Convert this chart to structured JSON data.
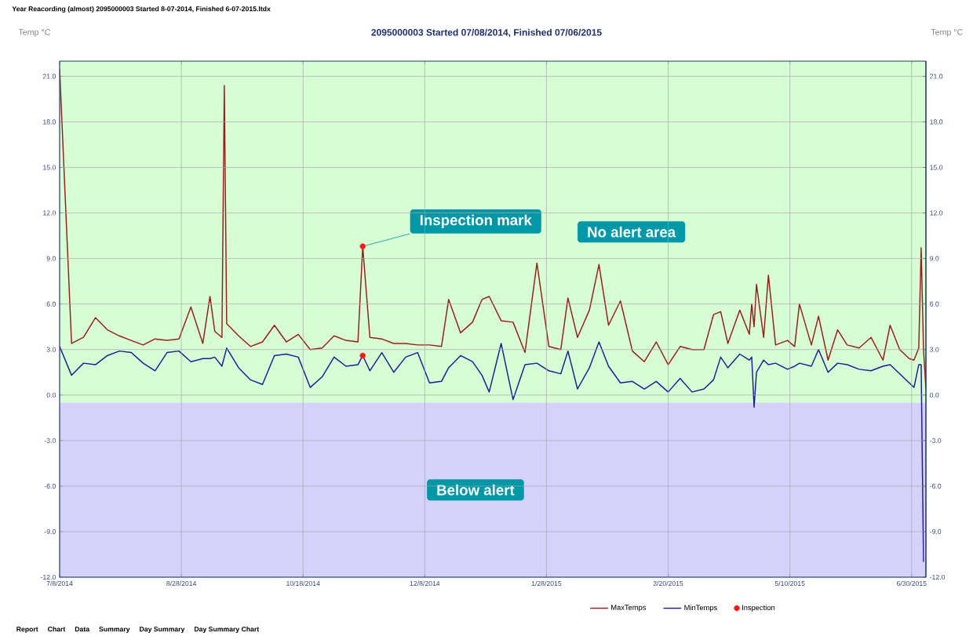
{
  "chart_data": {
    "type": "line",
    "title": "2095000003 Started 07/08/2014, Finished 07/06/2015",
    "ylabel": "Temp °C",
    "y2label": "Temp °C",
    "x": [
      "2014-07-08",
      "2014-07-13",
      "2014-07-18",
      "2014-07-23",
      "2014-07-28",
      "2014-08-02",
      "2014-08-07",
      "2014-08-12",
      "2014-08-17",
      "2014-08-22",
      "2014-08-27",
      "2014-09-01",
      "2014-09-06",
      "2014-09-09",
      "2014-09-11",
      "2014-09-14",
      "2014-09-15",
      "2014-09-16",
      "2014-09-21",
      "2014-09-26",
      "2014-10-01",
      "2014-10-06",
      "2014-10-11",
      "2014-10-16",
      "2014-10-21",
      "2014-10-26",
      "2014-10-31",
      "2014-11-05",
      "2014-11-10",
      "2014-11-12",
      "2014-11-15",
      "2014-11-20",
      "2014-11-25",
      "2014-11-30",
      "2014-12-05",
      "2014-12-10",
      "2014-12-15",
      "2014-12-18",
      "2014-12-23",
      "2014-12-28",
      "2015-01-01",
      "2015-01-04",
      "2015-01-09",
      "2015-01-14",
      "2015-01-19",
      "2015-01-24",
      "2015-01-29",
      "2015-02-03",
      "2015-02-06",
      "2015-02-10",
      "2015-02-15",
      "2015-02-19",
      "2015-02-23",
      "2015-02-28",
      "2015-03-05",
      "2015-03-10",
      "2015-03-15",
      "2015-03-20",
      "2015-03-25",
      "2015-03-30",
      "2015-04-04",
      "2015-04-08",
      "2015-04-11",
      "2015-04-14",
      "2015-04-19",
      "2015-04-23",
      "2015-04-24",
      "2015-04-25",
      "2015-04-26",
      "2015-04-29",
      "2015-05-01",
      "2015-05-04",
      "2015-05-09",
      "2015-05-12",
      "2015-05-14",
      "2015-05-19",
      "2015-05-22",
      "2015-05-26",
      "2015-05-30",
      "2015-06-03",
      "2015-06-08",
      "2015-06-13",
      "2015-06-18",
      "2015-06-21",
      "2015-06-25",
      "2015-06-29",
      "2015-07-01",
      "2015-07-03",
      "2015-07-04",
      "2015-07-05",
      "2015-07-06"
    ],
    "series": [
      {
        "name": "MaxTemps",
        "color": "#9b1c1c",
        "values": [
          21.5,
          3.4,
          3.8,
          5.1,
          4.3,
          3.9,
          3.6,
          3.3,
          3.7,
          3.6,
          3.7,
          5.8,
          3.4,
          6.5,
          4.2,
          3.8,
          20.4,
          4.7,
          3.9,
          3.2,
          3.5,
          4.6,
          3.5,
          4.0,
          3.0,
          3.1,
          3.9,
          3.6,
          3.5,
          9.8,
          3.8,
          3.7,
          3.4,
          3.4,
          3.3,
          3.3,
          3.2,
          6.3,
          4.1,
          4.8,
          6.3,
          6.5,
          4.9,
          4.8,
          2.8,
          8.7,
          3.2,
          3.0,
          6.4,
          3.8,
          5.6,
          8.6,
          4.6,
          6.2,
          2.9,
          2.2,
          3.5,
          2.0,
          3.2,
          3.0,
          3.0,
          5.3,
          5.5,
          3.4,
          5.6,
          4.0,
          6.0,
          4.5,
          7.3,
          3.8,
          7.9,
          3.3,
          3.6,
          3.2,
          6.0,
          3.3,
          5.2,
          2.3,
          4.3,
          3.3,
          3.1,
          3.8,
          2.3,
          4.6,
          3.0,
          2.4,
          2.3,
          3.1,
          9.7,
          3.0,
          0.4
        ]
      },
      {
        "name": "MinTemps",
        "color": "#1c1c9c",
        "values": [
          3.2,
          1.3,
          2.1,
          2.0,
          2.6,
          2.9,
          2.8,
          2.1,
          1.6,
          2.8,
          2.9,
          2.2,
          2.4,
          2.4,
          2.5,
          1.9,
          2.5,
          3.1,
          1.8,
          1.0,
          0.7,
          2.6,
          2.7,
          2.5,
          0.5,
          1.2,
          2.5,
          1.9,
          2.0,
          2.6,
          1.6,
          2.8,
          1.5,
          2.5,
          2.8,
          0.8,
          0.9,
          1.8,
          2.6,
          2.2,
          1.3,
          0.2,
          3.4,
          -0.3,
          2.0,
          2.1,
          1.6,
          1.4,
          2.9,
          0.4,
          1.8,
          3.5,
          1.9,
          0.8,
          0.9,
          0.4,
          0.9,
          0.2,
          1.1,
          0.2,
          0.4,
          1.0,
          2.5,
          1.8,
          2.7,
          2.3,
          2.5,
          -0.8,
          1.5,
          2.3,
          2.0,
          2.1,
          1.7,
          1.9,
          2.1,
          1.9,
          3.0,
          1.5,
          2.1,
          2.0,
          1.7,
          1.6,
          1.9,
          2.0,
          1.4,
          0.8,
          0.5,
          2.0,
          2.0,
          -11.0,
          null
        ]
      },
      {
        "name": "Inspection",
        "type": "scatter",
        "marker": "circle",
        "color": "#ff1a1a",
        "x": [
          "2014-11-12",
          "2014-11-12"
        ],
        "values": [
          9.8,
          2.6
        ]
      }
    ],
    "xlim": [
      "2014-07-08",
      "2015-07-06"
    ],
    "xticks": [
      {
        "value": "2014-07-08",
        "label": "7/8/2014"
      },
      {
        "value": "2014-08-28",
        "label": "8/28/2014"
      },
      {
        "value": "2014-10-18",
        "label": "10/18/2014"
      },
      {
        "value": "2014-12-08",
        "label": "12/8/2014"
      },
      {
        "value": "2015-01-28",
        "label": "1/28/2015"
      },
      {
        "value": "2015-03-20",
        "label": "3/20/2015"
      },
      {
        "value": "2015-05-10",
        "label": "5/10/2015"
      },
      {
        "value": "2015-06-30",
        "label": "6/30/2015"
      }
    ],
    "ylim": [
      -12,
      22
    ],
    "yticks": [
      {
        "value": -12,
        "label": "-12.0"
      },
      {
        "value": -9,
        "label": "-9.0"
      },
      {
        "value": -6,
        "label": "-6.0"
      },
      {
        "value": -3,
        "label": "-3.0"
      },
      {
        "value": 0,
        "label": "0.0"
      },
      {
        "value": 3,
        "label": "3.0"
      },
      {
        "value": 6,
        "label": "6.0"
      },
      {
        "value": 9,
        "label": "9.0"
      },
      {
        "value": 12,
        "label": "12.0"
      },
      {
        "value": 15,
        "label": "15.0"
      },
      {
        "value": 18,
        "label": "18.0"
      },
      {
        "value": 21,
        "label": "21.0"
      }
    ],
    "y2lim": [
      -12,
      22
    ],
    "y2ticks": [
      {
        "value": -12,
        "label": "-12.0"
      },
      {
        "value": -9,
        "label": "-9.0"
      },
      {
        "value": -6,
        "label": "-6.0"
      },
      {
        "value": -3,
        "label": "-3.0"
      },
      {
        "value": 0,
        "label": "0.0"
      },
      {
        "value": 3,
        "label": "3.0"
      },
      {
        "value": 6,
        "label": "6.0"
      },
      {
        "value": 9,
        "label": "9.0"
      },
      {
        "value": 12,
        "label": "12.0"
      },
      {
        "value": 15,
        "label": "15.0"
      },
      {
        "value": 18,
        "label": "18.0"
      },
      {
        "value": 21,
        "label": "21.0"
      }
    ],
    "bands": [
      {
        "axis": "y",
        "from": -0.5,
        "to": 22,
        "label": "No alert area",
        "color": "#d6fdd4"
      },
      {
        "axis": "y",
        "from": -12,
        "to": -0.5,
        "label": "Below alert",
        "color": "#d4d2fb"
      }
    ],
    "annotations": [
      "Year Reacording (almost) 2095000003 Started 8-07-2014, Finished 6-07-2015.ltdx",
      {
        "text": "Inspection mark",
        "x": "2014-11-12",
        "y": 9.8
      },
      "Report",
      "Chart",
      "Data",
      "Summary",
      "Day Summary",
      "Day Summary Chart"
    ],
    "grid": true,
    "legend": "bottom"
  }
}
